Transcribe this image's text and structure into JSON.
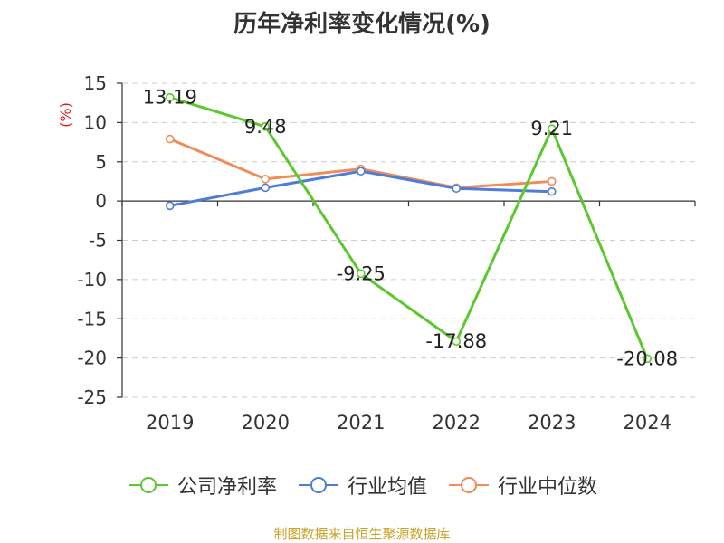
{
  "chart_data": {
    "type": "line",
    "title": "历年净利率变化情况(%)",
    "ylabel": "(%)",
    "categories": [
      "2019",
      "2020",
      "2021",
      "2022",
      "2023",
      "2024"
    ],
    "ylim": [
      -25,
      15
    ],
    "yticks": [
      15,
      10,
      5,
      0,
      -5,
      -10,
      -15,
      -20,
      -25
    ],
    "grid": true,
    "legend_position": "bottom",
    "series": [
      {
        "name": "公司净利率",
        "color": "#5cc72e",
        "values": [
          13.19,
          9.48,
          -9.25,
          -17.88,
          9.21,
          -20.08
        ],
        "labels": [
          "13.19",
          "9.48",
          "-9.25",
          "-17.88",
          "9.21",
          "-20.08"
        ]
      },
      {
        "name": "行业均值",
        "color": "#4e7dd9",
        "values": [
          -0.6,
          1.7,
          3.8,
          1.6,
          1.2,
          null
        ]
      },
      {
        "name": "行业中位数",
        "color": "#f08c5a",
        "values": [
          7.9,
          2.8,
          4.1,
          1.7,
          2.5,
          null
        ]
      }
    ]
  },
  "source_note": "制图数据来自恒生聚源数据库"
}
